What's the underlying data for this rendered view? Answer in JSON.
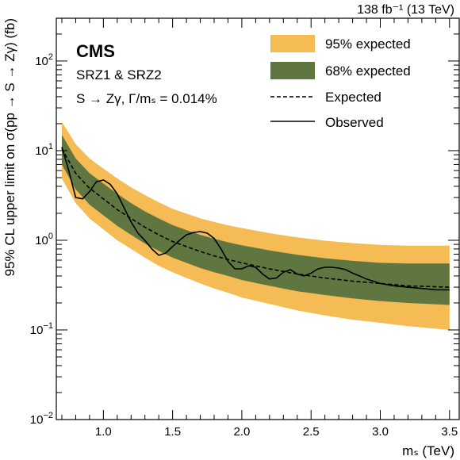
{
  "chart_data": {
    "type": "line",
    "lumi_label": "138 fb⁻¹ (13 TeV)",
    "experiment": "CMS",
    "category": "SRZ1 & SRZ2",
    "process": "S → Zγ, Γ/mₛ = 0.014%",
    "xlabel": "mₛ (TeV)",
    "ylabel": "95% CL upper limit on σ(pp → S → Zγ) (fb)",
    "xlim": [
      0.66,
      3.57
    ],
    "ylim": [
      0.01,
      300
    ],
    "yscale": "log",
    "x_ticks": [
      1.0,
      1.5,
      2.0,
      2.5,
      3.0,
      3.5
    ],
    "x_tick_labels": [
      "1.0",
      "1.5",
      "2.0",
      "2.5",
      "3.0",
      "3.5"
    ],
    "y_ticks": [
      0.01,
      0.1,
      1,
      10,
      100
    ],
    "y_tick_labels": [
      {
        "base": "10",
        "exp": "−2"
      },
      {
        "base": "10",
        "exp": "−1"
      },
      {
        "base": "10",
        "exp": "0"
      },
      {
        "base": "10",
        "exp": "1"
      },
      {
        "base": "10",
        "exp": "2"
      }
    ],
    "legend_position": "top-right",
    "legend": {
      "band95": "95% expected",
      "band68": "68% expected",
      "expected": "Expected",
      "observed": "Observed"
    },
    "colors": {
      "band95": "#F5BB54",
      "band68": "#607641",
      "expected": "#000000",
      "observed": "#000000"
    },
    "series": [
      {
        "name": "Expected",
        "style": "dashed",
        "x": [
          0.7,
          0.8,
          0.9,
          1.0,
          1.1,
          1.2,
          1.3,
          1.4,
          1.5,
          1.6,
          1.7,
          1.8,
          1.9,
          2.0,
          2.2,
          2.4,
          2.6,
          2.8,
          3.0,
          3.2,
          3.5
        ],
        "y": [
          10.5,
          5.6,
          3.8,
          2.9,
          2.2,
          1.75,
          1.4,
          1.15,
          0.97,
          0.85,
          0.75,
          0.67,
          0.61,
          0.56,
          0.48,
          0.42,
          0.38,
          0.35,
          0.33,
          0.31,
          0.3
        ]
      },
      {
        "name": "68% expected",
        "style": "band",
        "x": [
          0.7,
          0.8,
          0.9,
          1.0,
          1.1,
          1.2,
          1.3,
          1.4,
          1.5,
          1.6,
          1.7,
          1.8,
          1.9,
          2.0,
          2.2,
          2.4,
          2.6,
          2.8,
          3.0,
          3.2,
          3.5
        ],
        "low": [
          7.0,
          3.7,
          2.5,
          1.9,
          1.45,
          1.15,
          0.92,
          0.76,
          0.64,
          0.56,
          0.49,
          0.44,
          0.4,
          0.36,
          0.31,
          0.27,
          0.245,
          0.225,
          0.21,
          0.2,
          0.19
        ],
        "high": [
          15.0,
          8.2,
          5.6,
          4.3,
          3.3,
          2.6,
          2.1,
          1.75,
          1.48,
          1.3,
          1.15,
          1.04,
          0.95,
          0.88,
          0.77,
          0.69,
          0.63,
          0.59,
          0.56,
          0.55,
          0.55
        ]
      },
      {
        "name": "95% expected",
        "style": "band",
        "x": [
          0.7,
          0.8,
          0.9,
          1.0,
          1.1,
          1.2,
          1.3,
          1.4,
          1.5,
          1.6,
          1.7,
          1.8,
          1.9,
          2.0,
          2.2,
          2.4,
          2.6,
          2.8,
          3.0,
          3.2,
          3.5
        ],
        "low": [
          4.9,
          2.6,
          1.75,
          1.32,
          1.0,
          0.8,
          0.64,
          0.52,
          0.44,
          0.38,
          0.33,
          0.29,
          0.26,
          0.23,
          0.195,
          0.165,
          0.145,
          0.13,
          0.12,
          0.11,
          0.1
        ],
        "high": [
          21.0,
          11.8,
          8.2,
          6.3,
          4.9,
          3.9,
          3.2,
          2.65,
          2.25,
          1.98,
          1.76,
          1.6,
          1.47,
          1.37,
          1.2,
          1.08,
          0.99,
          0.93,
          0.89,
          0.87,
          0.87
        ]
      },
      {
        "name": "Observed",
        "style": "solid",
        "x": [
          0.7,
          0.75,
          0.8,
          0.85,
          0.9,
          0.95,
          1.0,
          1.05,
          1.1,
          1.15,
          1.2,
          1.25,
          1.3,
          1.35,
          1.4,
          1.45,
          1.5,
          1.55,
          1.6,
          1.65,
          1.7,
          1.75,
          1.8,
          1.85,
          1.9,
          1.95,
          2.0,
          2.05,
          2.1,
          2.15,
          2.2,
          2.25,
          2.3,
          2.35,
          2.4,
          2.45,
          2.5,
          2.55,
          2.6,
          2.65,
          2.7,
          2.75,
          2.8,
          2.85,
          2.9,
          3.0,
          3.1,
          3.2,
          3.3,
          3.4,
          3.5
        ],
        "y": [
          11.0,
          6.0,
          3.0,
          2.9,
          3.5,
          4.5,
          4.7,
          4.2,
          3.3,
          2.3,
          1.6,
          1.2,
          1.0,
          0.8,
          0.68,
          0.72,
          0.85,
          1.0,
          1.15,
          1.22,
          1.25,
          1.2,
          1.05,
          0.8,
          0.58,
          0.48,
          0.48,
          0.52,
          0.5,
          0.42,
          0.37,
          0.38,
          0.44,
          0.47,
          0.42,
          0.4,
          0.43,
          0.48,
          0.5,
          0.5,
          0.49,
          0.47,
          0.43,
          0.4,
          0.37,
          0.33,
          0.31,
          0.3,
          0.29,
          0.28,
          0.28
        ]
      }
    ]
  }
}
